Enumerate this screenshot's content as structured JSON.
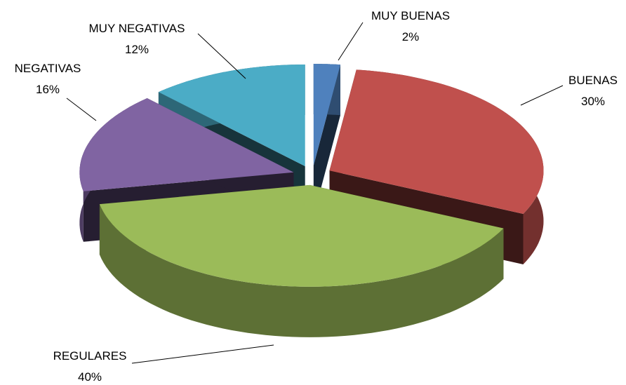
{
  "chart_data": {
    "type": "pie",
    "categories": [
      "MUY BUENAS",
      "BUENAS",
      "REGULARES",
      "NEGATIVAS",
      "MUY NEGATIVAS"
    ],
    "values": [
      2,
      30,
      40,
      16,
      12
    ],
    "value_labels": [
      "2%",
      "30%",
      "40%",
      "16%",
      "12%"
    ],
    "colors": [
      "#4f81bd",
      "#c0504d",
      "#9bbb59",
      "#8064a2",
      "#4bacc6"
    ]
  }
}
